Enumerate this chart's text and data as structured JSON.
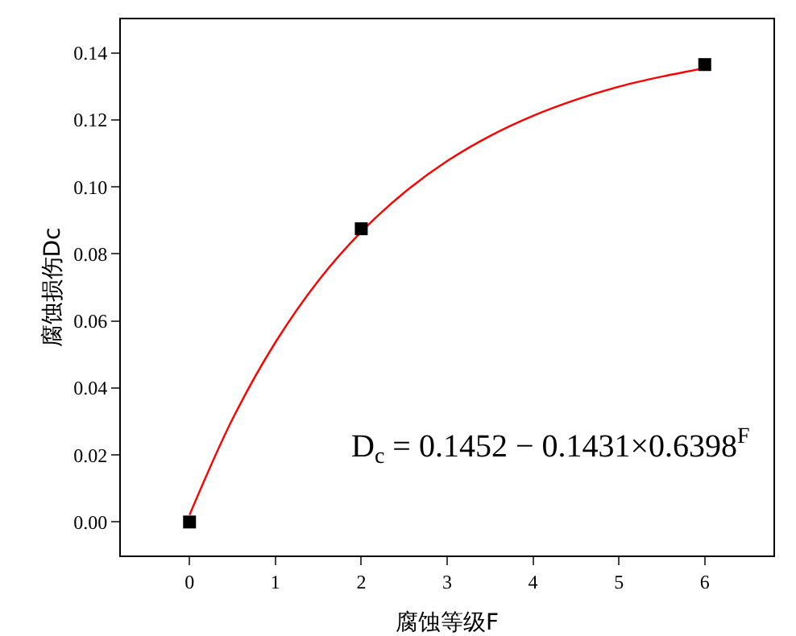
{
  "chart_data": {
    "type": "scatter",
    "xlabel": "腐蚀等级F",
    "ylabel": "腐蚀损伤Dc",
    "xlim": [
      -0.8,
      6.8
    ],
    "xticks": [
      0,
      1,
      2,
      3,
      4,
      5,
      6
    ],
    "ylim": [
      -0.01,
      0.15
    ],
    "yticks": [
      {
        "value": 0,
        "label": "0.00"
      },
      {
        "value": 0.02,
        "label": "0.02"
      },
      {
        "value": 0.04,
        "label": "0.04"
      },
      {
        "value": 0.06,
        "label": "0.06"
      },
      {
        "value": 0.08,
        "label": "0.08"
      },
      {
        "value": 0.1,
        "label": "0.10"
      },
      {
        "value": 0.12,
        "label": "0.12"
      },
      {
        "value": 0.14,
        "label": "0.14"
      }
    ],
    "grid": false,
    "series": [
      {
        "color": "#000000",
        "marker": "square",
        "x": [
          0,
          2,
          6
        ],
        "values": [
          0,
          0.0875,
          0.1365
        ]
      },
      {
        "type": "line",
        "color": "#ff0000",
        "marker": "none",
        "line_style": "solid",
        "x": [
          0,
          0.5,
          1,
          1.5,
          2,
          2.5,
          3,
          3.5,
          4,
          4.5,
          5,
          5.5,
          6
        ],
        "values": [
          0.0021,
          0.0307,
          0.0536,
          0.072,
          0.0866,
          0.0983,
          0.1077,
          0.1152,
          0.1212,
          0.126,
          0.1299,
          0.1329,
          0.1354
        ]
      }
    ],
    "annotations": [
      "D$_{c}$ = 0.1452 − 0.1431×0.6398$^{F}$"
    ]
  }
}
